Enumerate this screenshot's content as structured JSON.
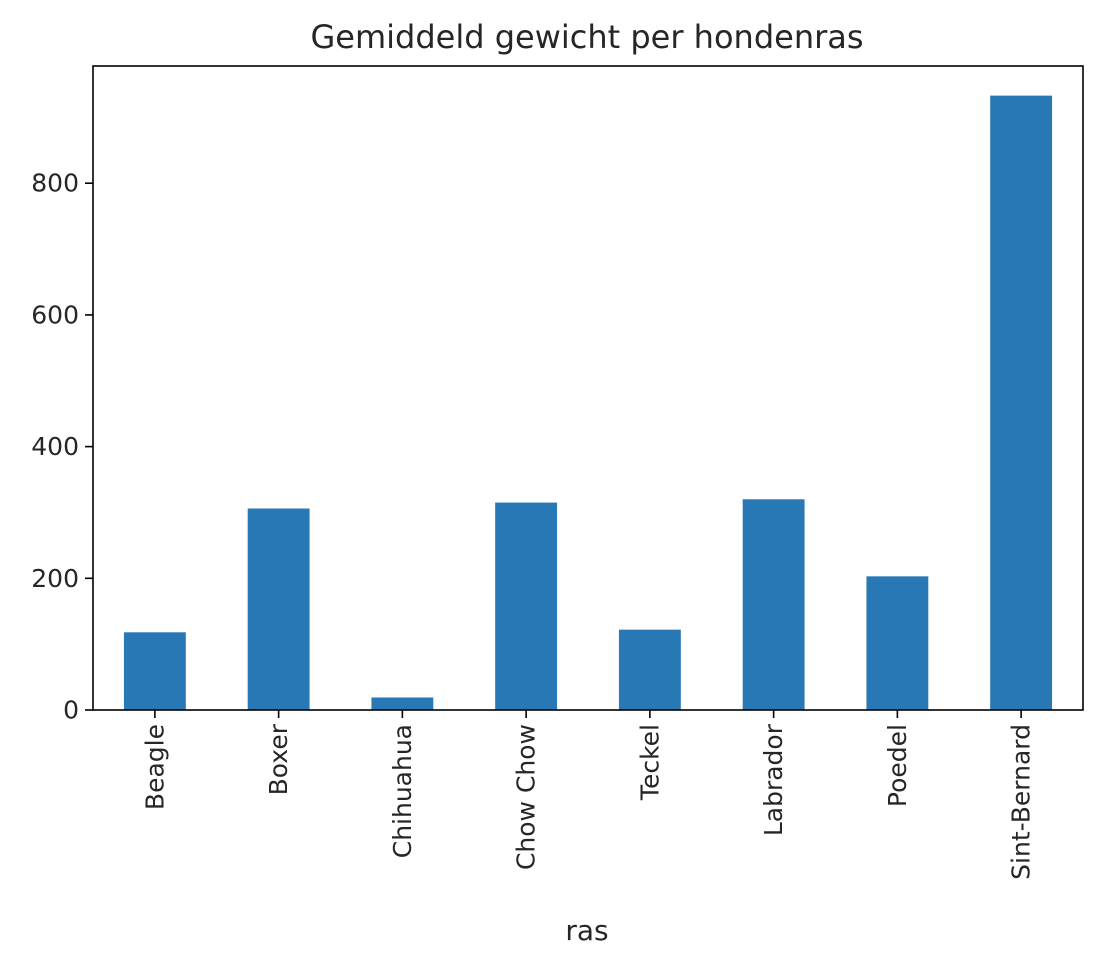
{
  "chart_data": {
    "type": "bar",
    "title": "Gemiddeld gewicht per hondenras",
    "xlabel": "ras",
    "ylabel": "",
    "categories": [
      "Beagle",
      "Boxer",
      "Chihuahua",
      "Chow Chow",
      "Teckel",
      "Labrador",
      "Poedel",
      "Sint-Bernard"
    ],
    "values": [
      118,
      306,
      19,
      315,
      122,
      320,
      203,
      933
    ],
    "ylim": [
      0,
      978
    ],
    "yticks": [
      "0",
      "200",
      "400",
      "600",
      "800"
    ],
    "bar_color": "#2878b5",
    "grid": false,
    "legend": "none"
  }
}
